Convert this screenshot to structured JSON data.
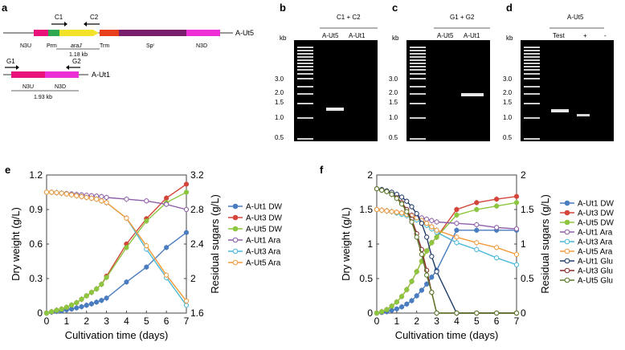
{
  "panel_labels": {
    "a": "a",
    "b": "b",
    "c": "c",
    "d": "d",
    "e": "e",
    "f": "f"
  },
  "panel_a": {
    "construct1": {
      "name": "A-Ut5",
      "primers": [
        "C1",
        "C2"
      ],
      "segments": [
        {
          "label": "N3U",
          "color": "#e8127a"
        },
        {
          "label": "Prm",
          "color": "#2fa84f"
        },
        {
          "label": "araJ",
          "color": "#f2e32a"
        },
        {
          "label": "Trm",
          "color": "#e8401c"
        },
        {
          "label": "Spʳ",
          "color": "#7a1f6b"
        },
        {
          "label": "N3D",
          "color": "#ee2fd5"
        }
      ],
      "size": "1.18 kb"
    },
    "construct2": {
      "name": "A-Ut1",
      "primers": [
        "G1",
        "G2"
      ],
      "segments": [
        {
          "label": "N3U",
          "color": "#e8127a"
        },
        {
          "label": "N3D",
          "color": "#ee2fd5"
        }
      ],
      "size": "1.93 kb"
    }
  },
  "gels": {
    "kb_label": "kb",
    "ladder_marks": [
      "3.0",
      "2.0",
      "1.5",
      "1.0",
      "0.5"
    ],
    "b": {
      "header": "C1 + C2",
      "lanes": [
        "A-Ut5",
        "A-Ut1"
      ]
    },
    "c": {
      "header": "G1 + G2",
      "lanes": [
        "A-Ut5",
        "A-Ut1"
      ]
    },
    "d": {
      "header": "A-Ut5",
      "lanes": [
        "Test",
        "+",
        "-"
      ]
    }
  },
  "chart_data": [
    {
      "panel": "e",
      "type": "line",
      "xlabel": "Cultivation time (days)",
      "ylabel": "Dry weight (g/L)",
      "y2label": "Residual sugars (g/L)",
      "xlim": [
        0,
        7
      ],
      "ylim": [
        0,
        1.2
      ],
      "y2lim": [
        1.6,
        3.2
      ],
      "xticks": [
        "0",
        "1",
        "2",
        "3",
        "4",
        "5",
        "6",
        "7"
      ],
      "yticks": [
        "0",
        "0.3",
        "0.6",
        "0.9",
        "1.2"
      ],
      "y2ticks": [
        "1.6",
        "2",
        "2.4",
        "2.8",
        "3.2"
      ],
      "x": [
        0,
        0.25,
        0.5,
        0.75,
        1,
        1.25,
        1.5,
        1.75,
        2,
        2.25,
        2.5,
        2.75,
        3,
        4,
        5,
        6,
        7
      ],
      "series": [
        {
          "name": "A-Ut1 DW",
          "axis": "left",
          "color": "#4a7cc0",
          "marker": "filled",
          "values": [
            0,
            0.008,
            0.015,
            0.02,
            0.028,
            0.035,
            0.045,
            0.055,
            0.068,
            0.08,
            0.095,
            0.11,
            0.13,
            0.27,
            0.4,
            0.57,
            0.7
          ]
        },
        {
          "name": "A-Ut3 DW",
          "axis": "left",
          "color": "#d4453a",
          "marker": "filled",
          "values": [
            0,
            0.012,
            0.025,
            0.035,
            0.05,
            0.07,
            0.09,
            0.12,
            0.15,
            0.18,
            0.21,
            0.25,
            0.32,
            0.6,
            0.82,
            1.0,
            1.12
          ]
        },
        {
          "name": "A-Ut5 DW",
          "axis": "left",
          "color": "#8dc63f",
          "marker": "filled",
          "values": [
            0,
            0.012,
            0.024,
            0.034,
            0.05,
            0.07,
            0.09,
            0.12,
            0.15,
            0.18,
            0.21,
            0.25,
            0.31,
            0.57,
            0.8,
            0.96,
            1.05
          ]
        },
        {
          "name": "A-Ut1 Ara",
          "axis": "right",
          "color": "#8e5ea8",
          "marker": "open",
          "values": [
            3.0,
            3.0,
            2.995,
            2.99,
            2.985,
            2.98,
            2.975,
            2.97,
            2.965,
            2.96,
            2.955,
            2.95,
            2.94,
            2.92,
            2.9,
            2.86,
            2.8
          ]
        },
        {
          "name": "A-Ut3 Ara",
          "axis": "right",
          "color": "#4bb8d8",
          "marker": "open",
          "values": [
            3.0,
            3.0,
            2.995,
            2.99,
            2.98,
            2.97,
            2.96,
            2.95,
            2.94,
            2.93,
            2.92,
            2.9,
            2.88,
            2.7,
            2.34,
            2.01,
            1.69
          ]
        },
        {
          "name": "A-Ut5 Ara",
          "axis": "right",
          "color": "#f39a3a",
          "marker": "open",
          "values": [
            3.0,
            3.0,
            2.995,
            2.99,
            2.98,
            2.97,
            2.96,
            2.95,
            2.94,
            2.93,
            2.92,
            2.9,
            2.88,
            2.7,
            2.38,
            2.04,
            1.74
          ]
        }
      ]
    },
    {
      "panel": "f",
      "type": "line",
      "xlabel": "Cultivation time (days)",
      "ylabel": "Dry weight (g/L)",
      "y2label": "Residual sugars (g/L)",
      "xlim": [
        0,
        7
      ],
      "ylim": [
        0,
        2
      ],
      "y2lim": [
        0,
        2
      ],
      "xticks": [
        "0",
        "1",
        "2",
        "3",
        "4",
        "5",
        "6",
        "7"
      ],
      "yticks": [
        "0",
        "0.5",
        "1",
        "1.5",
        "2"
      ],
      "y2ticks": [
        "0",
        "0.5",
        "1",
        "1.5",
        "2"
      ],
      "x": [
        0,
        0.25,
        0.5,
        0.75,
        1,
        1.25,
        1.5,
        1.75,
        2,
        2.25,
        2.5,
        2.75,
        3,
        4,
        5,
        6,
        7
      ],
      "series": [
        {
          "name": "A-Ut1 DW",
          "axis": "left",
          "color": "#4a7cc0",
          "marker": "filled",
          "values": [
            0,
            0.01,
            0.02,
            0.04,
            0.06,
            0.09,
            0.13,
            0.18,
            0.25,
            0.33,
            0.42,
            0.52,
            0.62,
            1.2,
            1.2,
            1.2,
            1.2
          ]
        },
        {
          "name": "A-Ut3 DW",
          "axis": "left",
          "color": "#d4453a",
          "marker": "filled",
          "values": [
            0,
            0.02,
            0.05,
            0.1,
            0.16,
            0.24,
            0.34,
            0.46,
            0.6,
            0.75,
            0.9,
            1.02,
            1.1,
            1.5,
            1.6,
            1.65,
            1.69
          ]
        },
        {
          "name": "A-Ut5 DW",
          "axis": "left",
          "color": "#8dc63f",
          "marker": "filled",
          "values": [
            0,
            0.02,
            0.05,
            0.1,
            0.16,
            0.24,
            0.34,
            0.46,
            0.6,
            0.75,
            0.9,
            1.02,
            1.1,
            1.42,
            1.5,
            1.55,
            1.6
          ]
        },
        {
          "name": "A-Ut1 Ara",
          "axis": "right",
          "color": "#8e5ea8",
          "marker": "open",
          "values": [
            1.5,
            1.49,
            1.48,
            1.47,
            1.46,
            1.45,
            1.43,
            1.42,
            1.4,
            1.38,
            1.36,
            1.34,
            1.32,
            1.3,
            1.28,
            1.24,
            1.22
          ]
        },
        {
          "name": "A-Ut3 Ara",
          "axis": "right",
          "color": "#4bb8d8",
          "marker": "open",
          "values": [
            1.5,
            1.49,
            1.48,
            1.47,
            1.45,
            1.43,
            1.41,
            1.38,
            1.35,
            1.31,
            1.27,
            1.22,
            1.17,
            1.02,
            0.92,
            0.8,
            0.7
          ]
        },
        {
          "name": "A-Ut5 Ara",
          "axis": "right",
          "color": "#f39a3a",
          "marker": "open",
          "values": [
            1.5,
            1.49,
            1.48,
            1.47,
            1.46,
            1.45,
            1.43,
            1.41,
            1.38,
            1.34,
            1.3,
            1.25,
            1.2,
            1.1,
            1.02,
            0.95,
            0.85
          ]
        },
        {
          "name": "A-Ut1 Glu",
          "axis": "right",
          "color": "#1f3a68",
          "marker": "open",
          "values": [
            1.8,
            1.79,
            1.77,
            1.75,
            1.72,
            1.68,
            1.62,
            1.54,
            1.44,
            1.3,
            1.1,
            0.82,
            0.6,
            0,
            0,
            0,
            0
          ]
        },
        {
          "name": "A-Ut3 Glu",
          "axis": "right",
          "color": "#8b2a2a",
          "marker": "open",
          "values": [
            1.8,
            1.78,
            1.76,
            1.72,
            1.67,
            1.6,
            1.5,
            1.36,
            1.15,
            0.92,
            0.62,
            0.3,
            0,
            0,
            0,
            0,
            0
          ]
        },
        {
          "name": "A-Ut5 Glu",
          "axis": "right",
          "color": "#5a7a2a",
          "marker": "open",
          "values": [
            1.8,
            1.78,
            1.76,
            1.72,
            1.66,
            1.58,
            1.47,
            1.32,
            1.1,
            0.85,
            0.55,
            0.3,
            0,
            0,
            0,
            0,
            0
          ]
        }
      ]
    }
  ]
}
